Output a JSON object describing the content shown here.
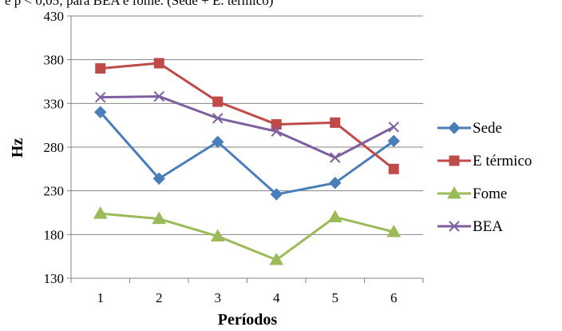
{
  "caption": "e p < 0,05; para BEA e fome. (Sede + E. térmico)",
  "chart_data": {
    "type": "line",
    "title": "",
    "xlabel": "Períodos",
    "ylabel": "Hz",
    "x": [
      "1",
      "2",
      "3",
      "4",
      "5",
      "6"
    ],
    "ylim": [
      130,
      430
    ],
    "yticks": [
      "130",
      "180",
      "230",
      "280",
      "330",
      "380",
      "430"
    ],
    "grid": true,
    "legend_position": "right",
    "series": [
      {
        "name": "Sede",
        "color": "#4a7ebb",
        "marker": "diamond",
        "values": [
          320,
          244,
          286,
          226,
          239,
          287
        ]
      },
      {
        "name": "E térmico",
        "color": "#be4b48",
        "marker": "square",
        "values": [
          370,
          376,
          332,
          306,
          308,
          255
        ]
      },
      {
        "name": "Fome",
        "color": "#9bbb59",
        "marker": "triangle",
        "values": [
          204,
          198,
          178,
          151,
          200,
          183
        ]
      },
      {
        "name": "BEA",
        "color": "#7d5fa0",
        "marker": "x",
        "values": [
          337,
          338,
          313,
          298,
          268,
          303
        ]
      }
    ]
  }
}
